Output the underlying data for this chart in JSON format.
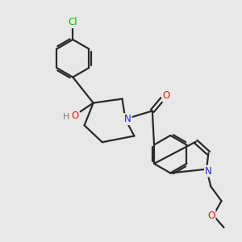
{
  "background_color": "#e8e8e8",
  "bond_color": "#2a2a2a",
  "atom_colors": {
    "Cl": "#00bb00",
    "N": "#2222dd",
    "O": "#dd2200",
    "H_col": "#777777"
  },
  "figsize": [
    3.0,
    3.0
  ],
  "dpi": 100
}
